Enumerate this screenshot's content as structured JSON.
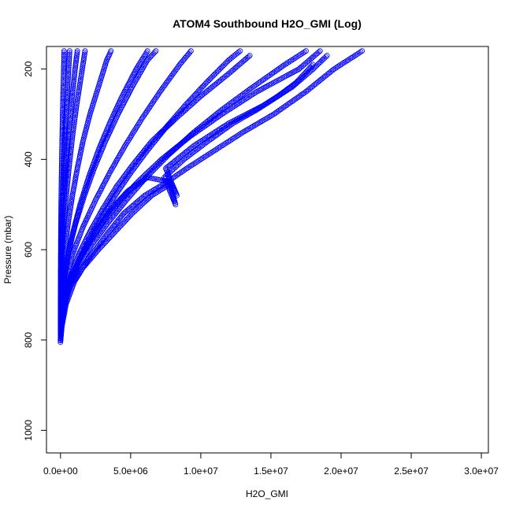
{
  "chart_data": {
    "type": "scatter",
    "title": "ATOM4 Southbound H2O_GMI (Log)",
    "xlabel": "H2O_GMI",
    "ylabel": "Pressure (mbar)",
    "xlim": [
      -1000000,
      30500000
    ],
    "ylim": [
      1050,
      150
    ],
    "y_inverted": true,
    "grid": false,
    "point_style": "open circle",
    "x_ticks": [
      {
        "value": 0,
        "label": "0.0e+00"
      },
      {
        "value": 5000000,
        "label": "5.0e+06"
      },
      {
        "value": 10000000,
        "label": "1.0e+07"
      },
      {
        "value": 15000000,
        "label": "1.5e+07"
      },
      {
        "value": 20000000,
        "label": "2.0e+07"
      },
      {
        "value": 25000000,
        "label": "2.5e+07"
      },
      {
        "value": 30000000,
        "label": "3.0e+07"
      }
    ],
    "y_ticks": [
      {
        "value": 200,
        "label": "200"
      },
      {
        "value": 400,
        "label": "400"
      },
      {
        "value": 600,
        "label": "600"
      },
      {
        "value": 800,
        "label": "800"
      },
      {
        "value": 1000,
        "label": "1000"
      }
    ],
    "series": [
      {
        "values": [
          [
            0,
            800
          ],
          [
            40000,
            780
          ],
          [
            150000,
            750
          ],
          [
            400000,
            700
          ],
          [
            900000,
            650
          ],
          [
            1700000,
            600
          ],
          [
            2800000,
            550
          ],
          [
            4000000,
            500
          ],
          [
            5500000,
            450
          ],
          [
            7200000,
            400
          ],
          [
            9200000,
            350
          ],
          [
            11500000,
            300
          ],
          [
            14000000,
            250
          ],
          [
            17000000,
            200
          ],
          [
            18500000,
            160
          ]
        ]
      },
      {
        "values": [
          [
            0,
            805
          ],
          [
            100000,
            770
          ],
          [
            400000,
            720
          ],
          [
            1000000,
            670
          ],
          [
            2000000,
            620
          ],
          [
            3200000,
            570
          ],
          [
            4500000,
            520
          ],
          [
            6000000,
            480
          ],
          [
            7600000,
            450
          ],
          [
            9000000,
            420
          ],
          [
            11000000,
            380
          ],
          [
            13000000,
            340
          ],
          [
            15200000,
            300
          ],
          [
            17500000,
            250
          ],
          [
            19500000,
            200
          ],
          [
            21500000,
            160
          ]
        ]
      },
      {
        "values": [
          [
            0,
            800
          ],
          [
            80000,
            760
          ],
          [
            300000,
            710
          ],
          [
            700000,
            660
          ],
          [
            1300000,
            610
          ],
          [
            2100000,
            560
          ],
          [
            3000000,
            510
          ],
          [
            4000000,
            460
          ],
          [
            5200000,
            410
          ],
          [
            6500000,
            360
          ],
          [
            8200000,
            310
          ],
          [
            10000000,
            260
          ],
          [
            12000000,
            210
          ],
          [
            13500000,
            170
          ]
        ]
      },
      {
        "values": [
          [
            0,
            800
          ],
          [
            150000,
            740
          ],
          [
            600000,
            680
          ],
          [
            1400000,
            620
          ],
          [
            2500000,
            560
          ],
          [
            3600000,
            510
          ],
          [
            4800000,
            470
          ],
          [
            6200000,
            440
          ],
          [
            7800000,
            450
          ],
          [
            8300000,
            480
          ],
          [
            7500000,
            420
          ],
          [
            9500000,
            370
          ],
          [
            12000000,
            320
          ],
          [
            14500000,
            280
          ],
          [
            16500000,
            240
          ],
          [
            18000000,
            200
          ],
          [
            19000000,
            170
          ]
        ]
      },
      {
        "values": [
          [
            0,
            790
          ],
          [
            50000,
            740
          ],
          [
            200000,
            680
          ],
          [
            500000,
            620
          ],
          [
            900000,
            560
          ],
          [
            1400000,
            500
          ],
          [
            2000000,
            440
          ],
          [
            2700000,
            380
          ],
          [
            3500000,
            320
          ],
          [
            4400000,
            260
          ],
          [
            5400000,
            200
          ],
          [
            6200000,
            160
          ]
        ]
      },
      {
        "values": [
          [
            0,
            780
          ],
          [
            30000,
            720
          ],
          [
            120000,
            660
          ],
          [
            300000,
            600
          ],
          [
            550000,
            540
          ],
          [
            850000,
            480
          ],
          [
            1200000,
            420
          ],
          [
            1600000,
            360
          ],
          [
            2100000,
            300
          ],
          [
            2700000,
            240
          ],
          [
            3300000,
            180
          ],
          [
            3600000,
            160
          ]
        ]
      },
      {
        "values": [
          [
            0,
            770
          ],
          [
            20000,
            700
          ],
          [
            80000,
            630
          ],
          [
            200000,
            560
          ],
          [
            380000,
            490
          ],
          [
            600000,
            420
          ],
          [
            850000,
            350
          ],
          [
            1150000,
            280
          ],
          [
            1500000,
            210
          ],
          [
            1750000,
            160
          ]
        ]
      },
      {
        "values": [
          [
            0,
            760
          ],
          [
            10000,
            680
          ],
          [
            40000,
            600
          ],
          [
            100000,
            520
          ],
          [
            190000,
            440
          ],
          [
            300000,
            360
          ],
          [
            430000,
            280
          ],
          [
            580000,
            200
          ],
          [
            650000,
            160
          ]
        ]
      },
      {
        "values": [
          [
            0,
            795
          ],
          [
            200000,
            730
          ],
          [
            700000,
            680
          ],
          [
            1600000,
            640
          ],
          [
            2700000,
            600
          ],
          [
            3900000,
            560
          ],
          [
            5100000,
            520
          ],
          [
            6500000,
            480
          ],
          [
            7800000,
            455
          ],
          [
            8200000,
            500
          ],
          [
            7400000,
            440
          ],
          [
            8800000,
            400
          ],
          [
            10500000,
            360
          ],
          [
            12300000,
            320
          ],
          [
            14000000,
            290
          ],
          [
            15500000,
            260
          ],
          [
            16800000,
            230
          ],
          [
            18000000,
            190
          ]
        ]
      },
      {
        "values": [
          [
            0,
            785
          ],
          [
            120000,
            740
          ],
          [
            500000,
            690
          ],
          [
            1200000,
            640
          ],
          [
            2200000,
            590
          ],
          [
            3400000,
            540
          ],
          [
            4700000,
            490
          ],
          [
            6100000,
            440
          ],
          [
            7700000,
            390
          ],
          [
            9500000,
            340
          ],
          [
            11500000,
            290
          ],
          [
            13700000,
            240
          ],
          [
            16000000,
            190
          ],
          [
            17500000,
            160
          ]
        ]
      },
      {
        "values": [
          [
            0,
            775
          ],
          [
            60000,
            720
          ],
          [
            250000,
            660
          ],
          [
            600000,
            600
          ],
          [
            1100000,
            540
          ],
          [
            1700000,
            480
          ],
          [
            2400000,
            420
          ],
          [
            3200000,
            360
          ],
          [
            4100000,
            300
          ],
          [
            5100000,
            240
          ],
          [
            6200000,
            180
          ],
          [
            6800000,
            160
          ]
        ]
      },
      {
        "values": [
          [
            0,
            790
          ],
          [
            90000,
            730
          ],
          [
            350000,
            670
          ],
          [
            850000,
            610
          ],
          [
            1600000,
            550
          ],
          [
            2500000,
            490
          ],
          [
            3500000,
            430
          ],
          [
            4600000,
            370
          ],
          [
            5800000,
            310
          ],
          [
            7100000,
            250
          ],
          [
            8500000,
            190
          ],
          [
            9300000,
            160
          ]
        ]
      },
      {
        "values": [
          [
            0,
            800
          ],
          [
            70000,
            770
          ],
          [
            260000,
            730
          ],
          [
            650000,
            680
          ],
          [
            1250000,
            630
          ],
          [
            2000000,
            580
          ],
          [
            2900000,
            530
          ],
          [
            3900000,
            480
          ],
          [
            5000000,
            430
          ],
          [
            6200000,
            380
          ],
          [
            7500000,
            330
          ],
          [
            8900000,
            280
          ],
          [
            10400000,
            230
          ],
          [
            12000000,
            180
          ],
          [
            12800000,
            160
          ]
        ]
      },
      {
        "values": [
          [
            0,
            760
          ],
          [
            15000,
            690
          ],
          [
            60000,
            620
          ],
          [
            140000,
            550
          ],
          [
            260000,
            480
          ],
          [
            410000,
            410
          ],
          [
            590000,
            340
          ],
          [
            800000,
            270
          ],
          [
            1040000,
            200
          ],
          [
            1200000,
            160
          ]
        ]
      },
      {
        "values": [
          [
            0,
            750
          ],
          [
            5000,
            660
          ],
          [
            20000,
            570
          ],
          [
            50000,
            480
          ],
          [
            95000,
            390
          ],
          [
            150000,
            300
          ],
          [
            220000,
            210
          ],
          [
            260000,
            160
          ]
        ]
      }
    ]
  }
}
